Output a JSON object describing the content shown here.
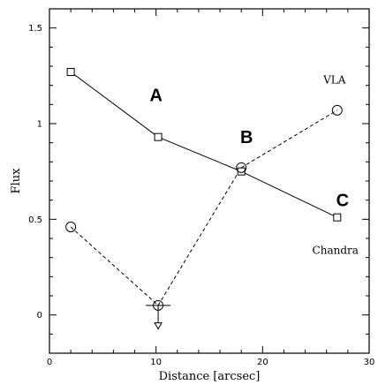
{
  "chart_data": {
    "type": "line",
    "xlabel": "Distance [arcsec]",
    "ylabel": "Flux",
    "xlim": [
      0,
      30
    ],
    "ylim": [
      -0.2,
      1.6
    ],
    "xticks": [
      0,
      10,
      20,
      30
    ],
    "yticks": [
      0,
      0.5,
      1,
      1.5
    ],
    "ytick_labels": [
      "0",
      "0.5",
      "1",
      "1.5"
    ],
    "grid": false,
    "series": [
      {
        "name": "Chandra",
        "marker": "square",
        "line": "solid",
        "x": [
          2,
          10.2,
          18,
          27
        ],
        "y": [
          1.27,
          0.93,
          0.75,
          0.51
        ]
      },
      {
        "name": "VLA",
        "marker": "circle",
        "line": "dashed",
        "x": [
          2,
          10.2,
          18,
          27
        ],
        "y": [
          0.46,
          0.05,
          0.77,
          1.07
        ],
        "upper_limit_index": 1,
        "upper_limit_y": -0.06
      }
    ],
    "annotations": [
      {
        "text": "A",
        "x": 10,
        "y": 1.15
      },
      {
        "text": "B",
        "x": 18.5,
        "y": 0.93
      },
      {
        "text": "C",
        "x": 27.5,
        "y": 0.6
      }
    ]
  }
}
